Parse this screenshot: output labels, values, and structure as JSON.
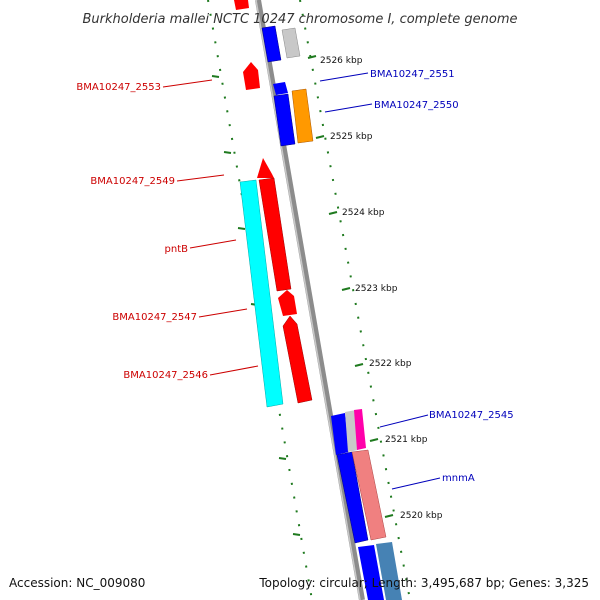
{
  "title": "Burkholderia mallei NCTC 10247 chromosome I, complete genome",
  "footer": {
    "accession": "Accession: NC_009080",
    "stats": "Topology: circular; Length: 3,495,687 bp; Genes: 3,325"
  },
  "colors": {
    "backbone": "#8c8c8c",
    "tick": "#1f7a1f",
    "forward_label": "#cc0000",
    "reverse_label": "#0000bb",
    "red": "#ff0000",
    "blue": "#0000ff",
    "cyan": "#00ffff",
    "orange": "#ff9900",
    "gray": "#c8c8c8",
    "pink": "#f08080",
    "magenta": "#ff00aa",
    "steelblue": "#4682b4"
  },
  "ticks": [
    {
      "label": "2526 kbp"
    },
    {
      "label": "2525 kbp"
    },
    {
      "label": "2524 kbp"
    },
    {
      "label": "2523 kbp"
    },
    {
      "label": "2522 kbp"
    },
    {
      "label": "2521 kbp"
    },
    {
      "label": "2520 kbp"
    }
  ],
  "gene_labels": {
    "forward": [
      "BMA10247_2553",
      "BMA10247_2549",
      "pntB",
      "BMA10247_2547",
      "BMA10247_2546"
    ],
    "reverse": [
      "BMA10247_2551",
      "BMA10247_2550",
      "BMA10247_2545",
      "mnmA"
    ]
  }
}
